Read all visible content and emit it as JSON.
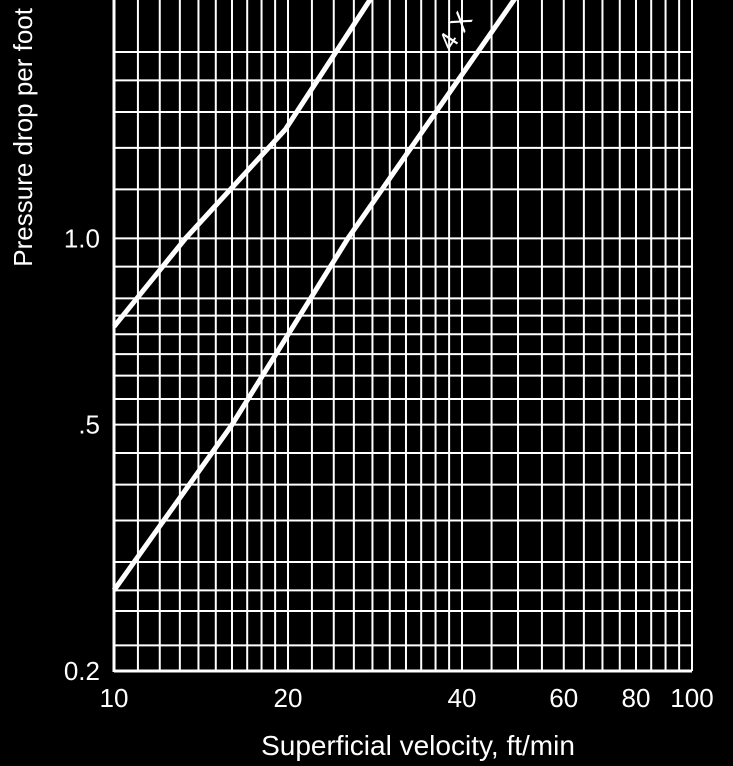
{
  "chart_data": {
    "type": "line",
    "xscale": "log",
    "yscale": "log",
    "xlim": [
      10,
      100
    ],
    "ylim": [
      0.2,
      2.5
    ],
    "xlabel": "Superficial velocity, ft/min",
    "ylabel": "Pressure drop per foot",
    "x_ticks": [
      10,
      20,
      40,
      60,
      80,
      100
    ],
    "x_tick_labels": [
      "10",
      "20",
      "40",
      "60",
      "80",
      "100"
    ],
    "y_ticks": [
      0.2,
      0.5,
      1.0
    ],
    "y_tick_labels": [
      "0.2",
      ".5",
      "1.0"
    ],
    "grid": true,
    "colors": {
      "background": "#000000",
      "foreground": "#ffffff"
    },
    "series": [
      {
        "label": "",
        "x": [
          10,
          13.3,
          19.8,
          28.3
        ],
        "y": [
          0.72,
          1.0,
          1.5,
          2.5
        ]
      },
      {
        "label": "4 X",
        "x": [
          10,
          16.0,
          25.4,
          50.3
        ],
        "y": [
          0.27,
          0.5,
          1.0,
          2.5
        ]
      }
    ],
    "annotations": [
      {
        "text": "4 X",
        "series": 1
      }
    ]
  }
}
